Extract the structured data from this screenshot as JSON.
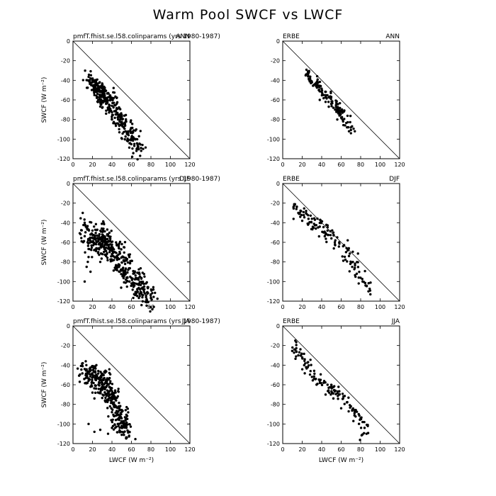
{
  "figure": {
    "title": "Warm Pool SWCF vs LWCF"
  },
  "chart_data": [
    {
      "type": "scatter",
      "left_label": "pmfT.fhist.se.l58.colinparams (yrs 1980-1987)",
      "season": "ANN",
      "xlim": [
        0,
        120
      ],
      "ylim": [
        -120,
        0
      ],
      "xticks": [
        0,
        20,
        40,
        60,
        80,
        100,
        120
      ],
      "yticks": [
        0,
        -20,
        -40,
        -60,
        -80,
        -100,
        -120
      ],
      "ylabel": "SWCF (W m⁻²)",
      "xlabel": "",
      "reference_line": "1:1 (SWCF = -LWCF)",
      "spread": 7,
      "anchors": [
        [
          17,
          -40
        ],
        [
          22,
          -45
        ],
        [
          27,
          -50
        ],
        [
          32,
          -55
        ],
        [
          38,
          -62
        ],
        [
          45,
          -72
        ],
        [
          52,
          -85
        ],
        [
          60,
          -98
        ],
        [
          68,
          -110
        ]
      ],
      "points": [
        [
          18,
          -38
        ],
        [
          20,
          -42
        ],
        [
          22,
          -40
        ],
        [
          24,
          -45
        ],
        [
          25,
          -50
        ],
        [
          27,
          -48
        ],
        [
          28,
          -52
        ],
        [
          30,
          -46
        ],
        [
          31,
          -55
        ],
        [
          33,
          -50
        ],
        [
          35,
          -58
        ],
        [
          36,
          -53
        ],
        [
          38,
          -60
        ],
        [
          40,
          -66
        ],
        [
          42,
          -63
        ],
        [
          44,
          -72
        ],
        [
          46,
          -78
        ],
        [
          48,
          -75
        ],
        [
          50,
          -84
        ],
        [
          52,
          -88
        ],
        [
          54,
          -92
        ],
        [
          57,
          -96
        ],
        [
          60,
          -100
        ],
        [
          63,
          -105
        ],
        [
          67,
          -108
        ],
        [
          70,
          -112
        ],
        [
          72,
          -110
        ],
        [
          26,
          -60
        ],
        [
          30,
          -68
        ],
        [
          34,
          -74
        ],
        [
          40,
          -80
        ],
        [
          22,
          -55
        ],
        [
          28,
          -62
        ],
        [
          36,
          -70
        ]
      ]
    },
    {
      "type": "scatter",
      "left_label": "ERBE",
      "season": "ANN",
      "xlim": [
        0,
        120
      ],
      "ylim": [
        -120,
        0
      ],
      "xticks": [
        0,
        20,
        40,
        60,
        80,
        100,
        120
      ],
      "yticks": [
        0,
        -20,
        -40,
        -60,
        -80,
        -100,
        -120
      ],
      "ylabel": "",
      "xlabel": "",
      "reference_line": "1:1 (SWCF = -LWCF)",
      "spread": 4,
      "anchors": [
        [
          25,
          -35
        ],
        [
          32,
          -40
        ],
        [
          40,
          -50
        ],
        [
          48,
          -58
        ],
        [
          55,
          -67
        ],
        [
          62,
          -76
        ],
        [
          70,
          -88
        ]
      ],
      "points": [
        [
          24,
          -34
        ],
        [
          26,
          -36
        ],
        [
          28,
          -38
        ],
        [
          30,
          -42
        ],
        [
          33,
          -44
        ],
        [
          35,
          -46
        ],
        [
          37,
          -50
        ],
        [
          40,
          -52
        ],
        [
          42,
          -55
        ],
        [
          45,
          -58
        ],
        [
          47,
          -62
        ],
        [
          50,
          -64
        ],
        [
          52,
          -68
        ],
        [
          55,
          -70
        ],
        [
          58,
          -74
        ],
        [
          60,
          -78
        ],
        [
          62,
          -82
        ],
        [
          64,
          -86
        ],
        [
          66,
          -88
        ],
        [
          68,
          -92
        ],
        [
          70,
          -94
        ],
        [
          74,
          -92
        ],
        [
          38,
          -60
        ],
        [
          44,
          -62
        ],
        [
          56,
          -80
        ]
      ]
    },
    {
      "type": "scatter",
      "left_label": "pmfT.fhist.se.l58.colinparams (yrs 1980-1987)",
      "season": "DJF",
      "xlim": [
        0,
        120
      ],
      "ylim": [
        -120,
        0
      ],
      "xticks": [
        0,
        20,
        40,
        60,
        80,
        100,
        120
      ],
      "yticks": [
        0,
        -20,
        -40,
        -60,
        -80,
        -100,
        -120
      ],
      "ylabel": "SWCF (W m⁻²)",
      "xlabel": "",
      "reference_line": "1:1 (SWCF = -LWCF)",
      "spread": 9,
      "anchors": [
        [
          12,
          -45
        ],
        [
          18,
          -55
        ],
        [
          25,
          -60
        ],
        [
          32,
          -55
        ],
        [
          38,
          -62
        ],
        [
          45,
          -72
        ],
        [
          52,
          -85
        ],
        [
          60,
          -95
        ],
        [
          70,
          -108
        ],
        [
          78,
          -115
        ]
      ],
      "points": [
        [
          10,
          -30
        ],
        [
          12,
          -40
        ],
        [
          14,
          -45
        ],
        [
          15,
          -60
        ],
        [
          16,
          -75
        ],
        [
          18,
          -90
        ],
        [
          20,
          -48
        ],
        [
          22,
          -56
        ],
        [
          24,
          -66
        ],
        [
          26,
          -70
        ],
        [
          30,
          -52
        ],
        [
          32,
          -58
        ],
        [
          35,
          -62
        ],
        [
          38,
          -68
        ],
        [
          40,
          -72
        ],
        [
          42,
          -78
        ],
        [
          45,
          -84
        ],
        [
          48,
          -90
        ],
        [
          52,
          -92
        ],
        [
          55,
          -96
        ],
        [
          58,
          -100
        ],
        [
          62,
          -104
        ],
        [
          66,
          -110
        ],
        [
          70,
          -112
        ],
        [
          75,
          -116
        ],
        [
          80,
          -117
        ],
        [
          12,
          -100
        ],
        [
          14,
          -85
        ],
        [
          28,
          -80
        ],
        [
          34,
          -74
        ]
      ]
    },
    {
      "type": "scatter",
      "left_label": "ERBE",
      "season": "DJF",
      "xlim": [
        0,
        120
      ],
      "ylim": [
        -120,
        0
      ],
      "xticks": [
        0,
        20,
        40,
        60,
        80,
        100,
        120
      ],
      "yticks": [
        0,
        -20,
        -40,
        -60,
        -80,
        -100,
        -120
      ],
      "ylabel": "",
      "xlabel": "",
      "reference_line": "1:1 (SWCF = -LWCF)",
      "spread": 6,
      "anchors": [
        [
          12,
          -24
        ],
        [
          20,
          -32
        ],
        [
          30,
          -40
        ],
        [
          40,
          -45
        ],
        [
          50,
          -55
        ],
        [
          60,
          -65
        ],
        [
          70,
          -78
        ],
        [
          78,
          -95
        ],
        [
          86,
          -108
        ]
      ],
      "points": [
        [
          12,
          -22
        ],
        [
          14,
          -26
        ],
        [
          16,
          -30
        ],
        [
          18,
          -34
        ],
        [
          20,
          -38
        ],
        [
          24,
          -28
        ],
        [
          26,
          -42
        ],
        [
          30,
          -36
        ],
        [
          34,
          -46
        ],
        [
          38,
          -44
        ],
        [
          42,
          -50
        ],
        [
          46,
          -48
        ],
        [
          50,
          -56
        ],
        [
          54,
          -58
        ],
        [
          58,
          -60
        ],
        [
          62,
          -64
        ],
        [
          65,
          -70
        ],
        [
          68,
          -74
        ],
        [
          72,
          -80
        ],
        [
          74,
          -86
        ],
        [
          76,
          -92
        ],
        [
          78,
          -96
        ],
        [
          82,
          -100
        ],
        [
          85,
          -104
        ],
        [
          88,
          -110
        ],
        [
          90,
          -113
        ],
        [
          44,
          -52
        ],
        [
          52,
          -50
        ]
      ]
    },
    {
      "type": "scatter",
      "left_label": "pmfT.fhist.se.l58.colinparams (yrs 1980-1987)",
      "season": "JJA",
      "xlim": [
        0,
        120
      ],
      "ylim": [
        -120,
        0
      ],
      "xticks": [
        0,
        20,
        40,
        60,
        80,
        100,
        120
      ],
      "yticks": [
        0,
        -20,
        -40,
        -60,
        -80,
        -100,
        -120
      ],
      "ylabel": "SWCF (W m⁻²)",
      "xlabel": "LWCF (W m⁻²)",
      "reference_line": "1:1 (SWCF = -LWCF)",
      "spread": 8,
      "anchors": [
        [
          12,
          -45
        ],
        [
          20,
          -55
        ],
        [
          28,
          -55
        ],
        [
          35,
          -62
        ],
        [
          40,
          -72
        ],
        [
          45,
          -85
        ],
        [
          50,
          -98
        ],
        [
          55,
          -105
        ]
      ],
      "points": [
        [
          10,
          -38
        ],
        [
          12,
          -44
        ],
        [
          14,
          -50
        ],
        [
          16,
          -56
        ],
        [
          18,
          -62
        ],
        [
          20,
          -68
        ],
        [
          22,
          -74
        ],
        [
          24,
          -40
        ],
        [
          26,
          -46
        ],
        [
          28,
          -52
        ],
        [
          30,
          -58
        ],
        [
          32,
          -64
        ],
        [
          34,
          -70
        ],
        [
          36,
          -76
        ],
        [
          38,
          -82
        ],
        [
          40,
          -88
        ],
        [
          42,
          -92
        ],
        [
          44,
          -96
        ],
        [
          46,
          -100
        ],
        [
          48,
          -104
        ],
        [
          50,
          -102
        ],
        [
          52,
          -98
        ],
        [
          54,
          -100
        ],
        [
          16,
          -100
        ],
        [
          22,
          -108
        ],
        [
          28,
          -106
        ],
        [
          36,
          -110
        ],
        [
          40,
          -104
        ]
      ]
    },
    {
      "type": "scatter",
      "left_label": "ERBE",
      "season": "JJA",
      "xlim": [
        0,
        120
      ],
      "ylim": [
        -120,
        0
      ],
      "xticks": [
        0,
        20,
        40,
        60,
        80,
        100,
        120
      ],
      "yticks": [
        0,
        -20,
        -40,
        -60,
        -80,
        -100,
        -120
      ],
      "ylabel": "",
      "xlabel": "LWCF (W m⁻²)",
      "reference_line": "1:1 (SWCF = -LWCF)",
      "spread": 5,
      "anchors": [
        [
          12,
          -22
        ],
        [
          20,
          -30
        ],
        [
          30,
          -50
        ],
        [
          40,
          -58
        ],
        [
          50,
          -64
        ],
        [
          60,
          -72
        ],
        [
          70,
          -82
        ],
        [
          80,
          -95
        ],
        [
          85,
          -108
        ]
      ],
      "points": [
        [
          10,
          -22
        ],
        [
          12,
          -24
        ],
        [
          14,
          -26
        ],
        [
          16,
          -30
        ],
        [
          20,
          -32
        ],
        [
          22,
          -40
        ],
        [
          24,
          -42
        ],
        [
          30,
          -52
        ],
        [
          34,
          -54
        ],
        [
          38,
          -56
        ],
        [
          42,
          -58
        ],
        [
          46,
          -60
        ],
        [
          50,
          -62
        ],
        [
          54,
          -66
        ],
        [
          58,
          -70
        ],
        [
          62,
          -74
        ],
        [
          66,
          -78
        ],
        [
          70,
          -82
        ],
        [
          74,
          -86
        ],
        [
          78,
          -90
        ],
        [
          80,
          -94
        ],
        [
          82,
          -98
        ],
        [
          84,
          -104
        ],
        [
          86,
          -110
        ],
        [
          44,
          -70
        ],
        [
          52,
          -74
        ],
        [
          60,
          -84
        ]
      ]
    }
  ]
}
